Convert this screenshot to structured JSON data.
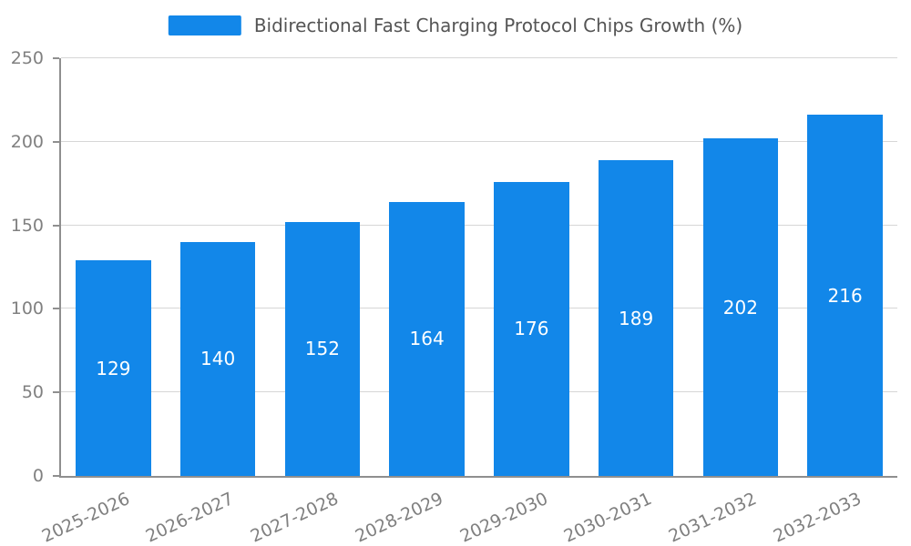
{
  "chart_data": {
    "type": "bar",
    "title": "Bidirectional Fast Charging Protocol Chips Growth (%)",
    "categories": [
      "2025-2026",
      "2026-2027",
      "2027-2028",
      "2028-2029",
      "2029-2030",
      "2030-2031",
      "2031-2032",
      "2032-2033"
    ],
    "values": [
      129,
      140,
      152,
      164,
      176,
      189,
      202,
      216
    ],
    "xlabel": "",
    "ylabel": "",
    "ylim": [
      0,
      250
    ],
    "yticks": [
      0,
      50,
      100,
      150,
      200,
      250
    ],
    "grid": true,
    "legend_position": "top",
    "colors": {
      "bar": "#1287e9",
      "value_label": "#ffffff",
      "axis_text": "#808080",
      "legend_text": "#555555",
      "gridline": "#d6d6d6",
      "axis_line": "#8f8f8f",
      "background": "#ffffff"
    }
  }
}
